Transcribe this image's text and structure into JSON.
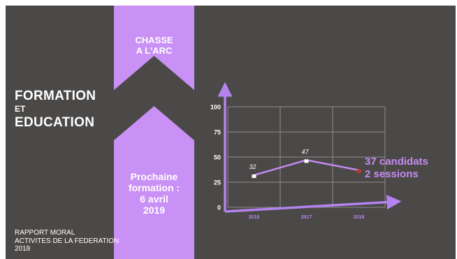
{
  "title": {
    "line1": "FORMATION",
    "line2": "ET",
    "line3": "EDUCATION"
  },
  "footer": {
    "line1": "RAPPORT MORAL",
    "line2": "ACTIVITES DE LA FEDERATION",
    "line3": "2018"
  },
  "ribbon": {
    "top_line1": "CHASSE",
    "top_line2": "A L'ARC",
    "bottom_line1": "Prochaine",
    "bottom_line2": "formation :",
    "bottom_line3": "6 avril",
    "bottom_line4": "2019",
    "color": "#c990f5"
  },
  "annotation": {
    "line1": "37 candidats",
    "line2": "2 sessions",
    "color": "#c58af2"
  },
  "chart_data": {
    "type": "line",
    "categories": [
      "2016",
      "2017",
      "2018"
    ],
    "values": [
      32,
      47,
      37
    ],
    "data_labels": [
      "32",
      "47",
      ""
    ],
    "ylim": [
      0,
      100
    ],
    "yticks": [
      "0",
      "25",
      "50",
      "75",
      "100"
    ],
    "grid": true,
    "line_color": "#c58af2",
    "axis_color": "#b583ef"
  }
}
